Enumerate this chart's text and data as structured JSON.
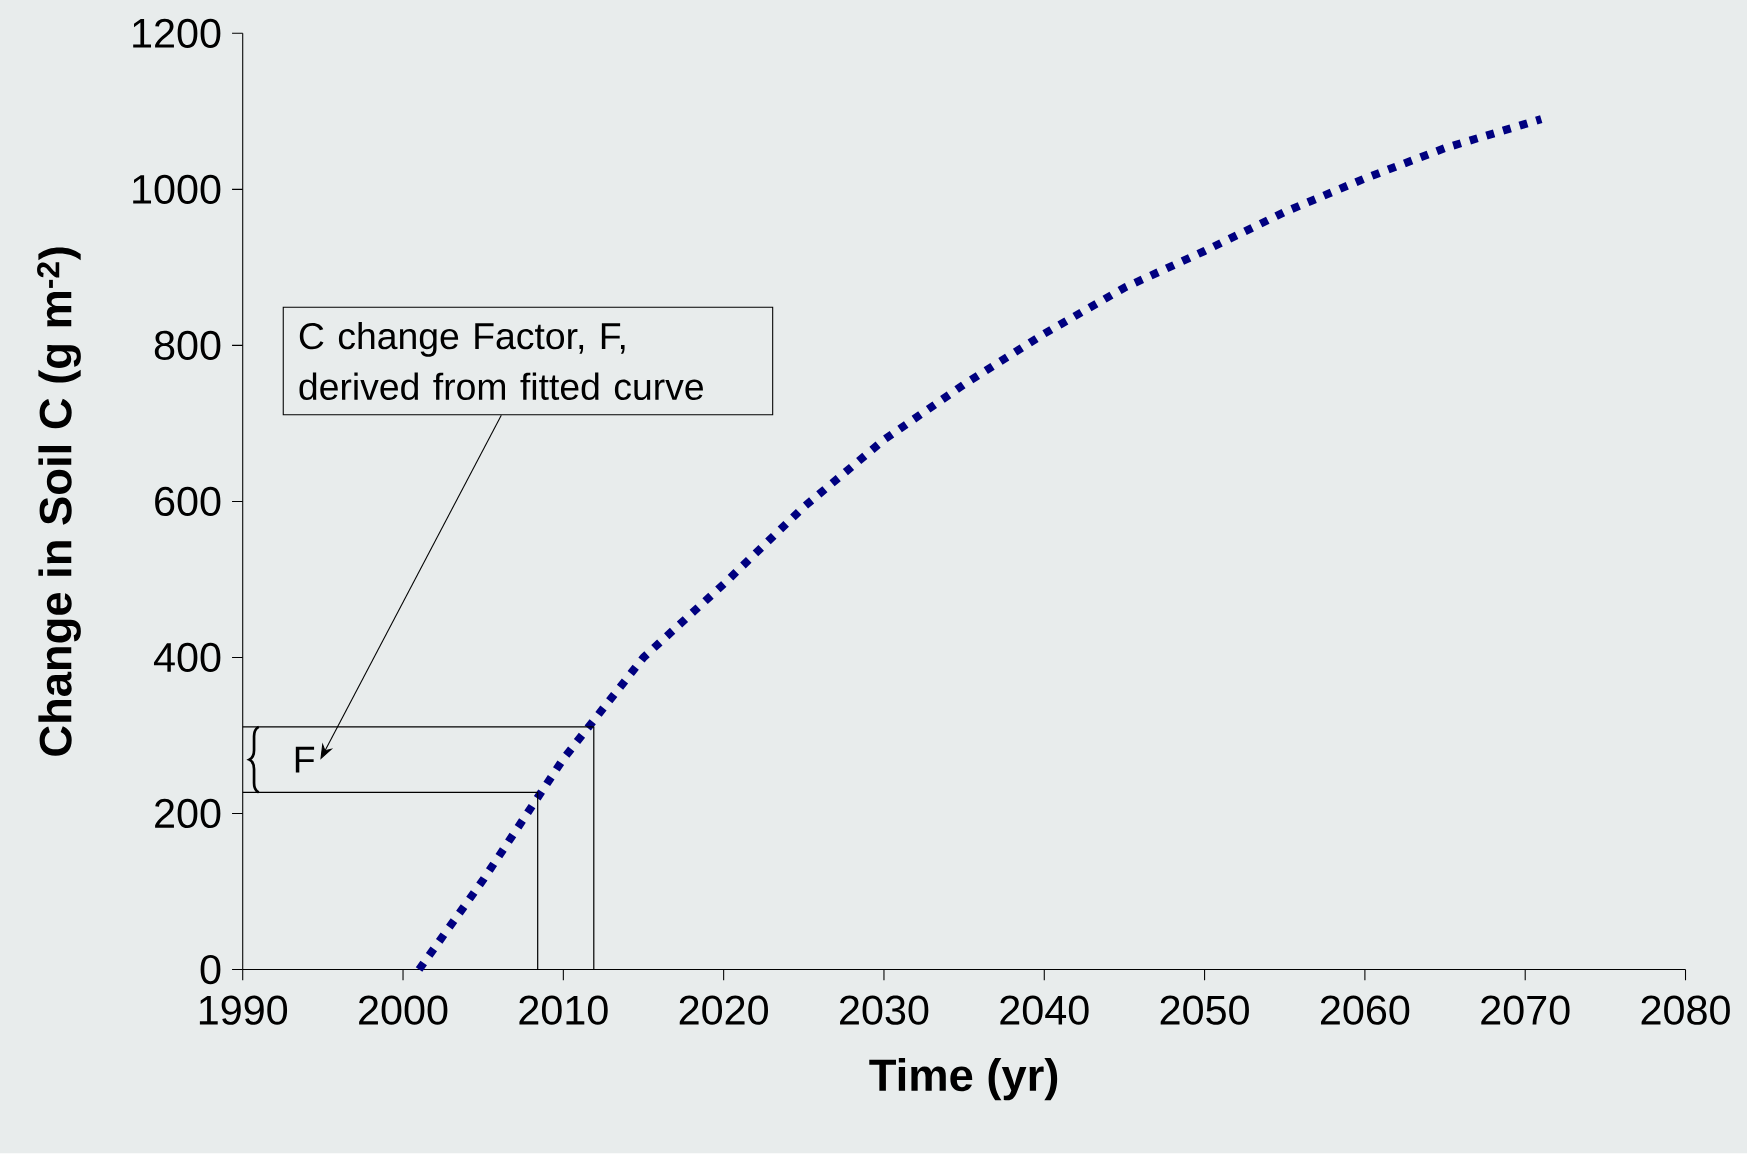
{
  "chart_data": {
    "type": "line",
    "xlabel": "Time (yr)",
    "ylabel": "Change in Soil C (g m$^{-2}$)",
    "xlim": [
      1990,
      2080
    ],
    "xticks": [
      1990,
      2000,
      2010,
      2020,
      2030,
      2040,
      2050,
      2060,
      2070,
      2080
    ],
    "ylim": [
      0,
      1200
    ],
    "yticks": [
      0,
      200,
      400,
      600,
      800,
      1000,
      1200
    ],
    "line_style": "dotted",
    "marker": "none",
    "grid": false,
    "series": [
      {
        "color": "#000080",
        "x": [
          2001,
          2005,
          2010,
          2015,
          2020,
          2025,
          2030,
          2035,
          2040,
          2045,
          2050,
          2055,
          2060,
          2065,
          2071
        ],
        "values": [
          0,
          115,
          270,
          400,
          494,
          593,
          679,
          750,
          815,
          874,
          921,
          971,
          1014,
          1053,
          1090
        ]
      },
      {
        "type": "line",
        "line_style": "solid",
        "color": "#000000",
        "x": [
          1990,
          2008.4,
          2008.4
        ],
        "values": [
          227,
          227,
          0
        ]
      },
      {
        "type": "line",
        "line_style": "solid",
        "color": "#000000",
        "x": [
          1990,
          2011.9,
          2011.9
        ],
        "values": [
          311,
          311,
          0
        ]
      }
    ],
    "annotations": [
      "C change Factor, F, derived from fitted curve",
      "F"
    ]
  }
}
